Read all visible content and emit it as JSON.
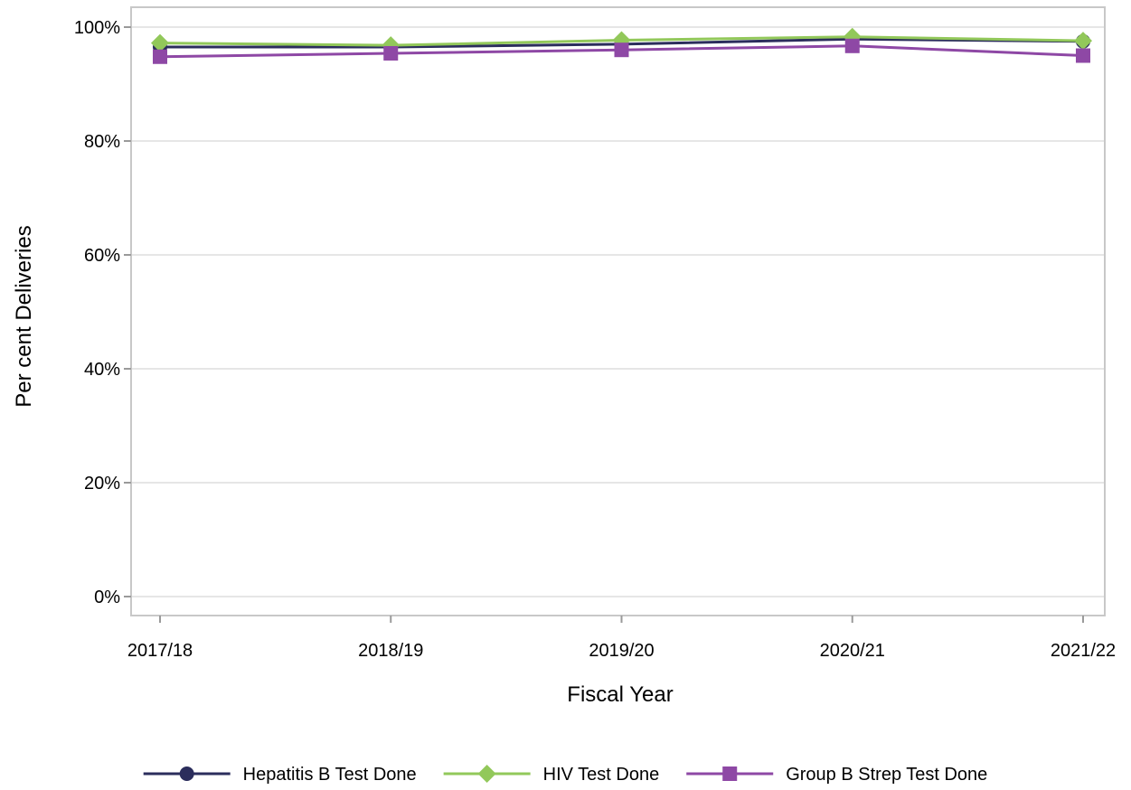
{
  "chart_data": {
    "type": "line",
    "xlabel": "Fiscal Year",
    "ylabel": "Per cent Deliveries",
    "categories": [
      "2017/18",
      "2018/19",
      "2019/20",
      "2020/21",
      "2021/22"
    ],
    "ylim": [
      0,
      100
    ],
    "yticks": [
      "0%",
      "20%",
      "40%",
      "60%",
      "80%",
      "100%"
    ],
    "grid": "horizontal",
    "legend_position": "bottom",
    "series": [
      {
        "name": "Hepatitis B Test Done",
        "values": [
          96.5,
          96.5,
          97.0,
          97.9,
          97.5
        ],
        "color": "#2b2d5c",
        "marker": "circle"
      },
      {
        "name": "HIV Test Done",
        "values": [
          97.2,
          96.8,
          97.7,
          98.3,
          97.6
        ],
        "color": "#92c85a",
        "marker": "diamond"
      },
      {
        "name": "Group B Strep Test Done",
        "values": [
          94.8,
          95.4,
          96.0,
          96.7,
          95.0
        ],
        "color": "#8e48a5",
        "marker": "square"
      }
    ]
  }
}
